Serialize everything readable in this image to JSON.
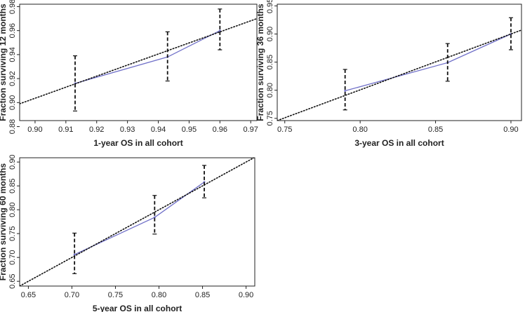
{
  "chart_data": [
    {
      "type": "line",
      "xlabel": "1-year OS in all cohort",
      "ylabel": "Fraction surviving 12 months",
      "xlim": [
        0.895,
        0.972
      ],
      "ylim": [
        0.885,
        0.982
      ],
      "xticks": [
        "0.90",
        "0.91",
        "0.92",
        "0.93",
        "0.94",
        "0.95",
        "0.96",
        "0.97"
      ],
      "yticks": [
        "0.88",
        "0.90",
        "0.92",
        "0.94",
        "0.96",
        "0.98"
      ],
      "grid": false,
      "series": [
        {
          "kind": "calibration-line",
          "color": "#6f6fc8",
          "x": [
            0.913,
            0.943,
            0.96
          ],
          "y": [
            0.916,
            0.938,
            0.96
          ]
        },
        {
          "kind": "error-bars",
          "color": "#111111",
          "x": [
            0.913,
            0.943,
            0.96
          ],
          "lower": [
            0.893,
            0.918,
            0.944
          ],
          "upper": [
            0.939,
            0.959,
            0.978
          ]
        },
        {
          "kind": "ideal-diagonal",
          "color": "#111111",
          "x": [
            0.895,
            0.972
          ],
          "y": [
            0.899,
            0.97
          ]
        }
      ]
    },
    {
      "type": "line",
      "xlabel": "3-year OS in all cohort",
      "ylabel": "Fraction surviving 36 months",
      "xlim": [
        0.745,
        0.907
      ],
      "ylim": [
        0.746,
        0.953
      ],
      "xticks": [
        "0.75",
        "0.80",
        "0.85",
        "0.90"
      ],
      "yticks": [
        "0.75",
        "0.80",
        "0.85",
        "0.90",
        "0.95"
      ],
      "grid": false,
      "series": [
        {
          "kind": "calibration-line",
          "color": "#6f6fc8",
          "x": [
            0.79,
            0.858,
            0.9
          ],
          "y": [
            0.799,
            0.849,
            0.9
          ]
        },
        {
          "kind": "error-bars",
          "color": "#111111",
          "x": [
            0.79,
            0.858,
            0.9
          ],
          "lower": [
            0.765,
            0.816,
            0.872
          ],
          "upper": [
            0.837,
            0.883,
            0.929
          ]
        },
        {
          "kind": "ideal-diagonal",
          "color": "#111111",
          "x": [
            0.745,
            0.907
          ],
          "y": [
            0.746,
            0.907
          ]
        }
      ]
    },
    {
      "type": "line",
      "xlabel": "5-year OS in all cohort",
      "ylabel": "Fraction surviving 60 months",
      "xlim": [
        0.64,
        0.91
      ],
      "ylim": [
        0.64,
        0.909
      ],
      "xticks": [
        "0.65",
        "0.70",
        "0.75",
        "0.80",
        "0.85",
        "0.90"
      ],
      "yticks": [
        "0.65",
        "0.70",
        "0.75",
        "0.80",
        "0.85",
        "0.90"
      ],
      "grid": false,
      "series": [
        {
          "kind": "calibration-line",
          "color": "#6f6fc8",
          "x": [
            0.703,
            0.795,
            0.852
          ],
          "y": [
            0.706,
            0.784,
            0.858
          ]
        },
        {
          "kind": "error-bars",
          "color": "#111111",
          "x": [
            0.703,
            0.795,
            0.852
          ],
          "lower": [
            0.666,
            0.749,
            0.825
          ],
          "upper": [
            0.751,
            0.83,
            0.893
          ]
        },
        {
          "kind": "ideal-diagonal",
          "color": "#111111",
          "x": [
            0.64,
            0.91
          ],
          "y": [
            0.64,
            0.91
          ]
        }
      ]
    }
  ]
}
